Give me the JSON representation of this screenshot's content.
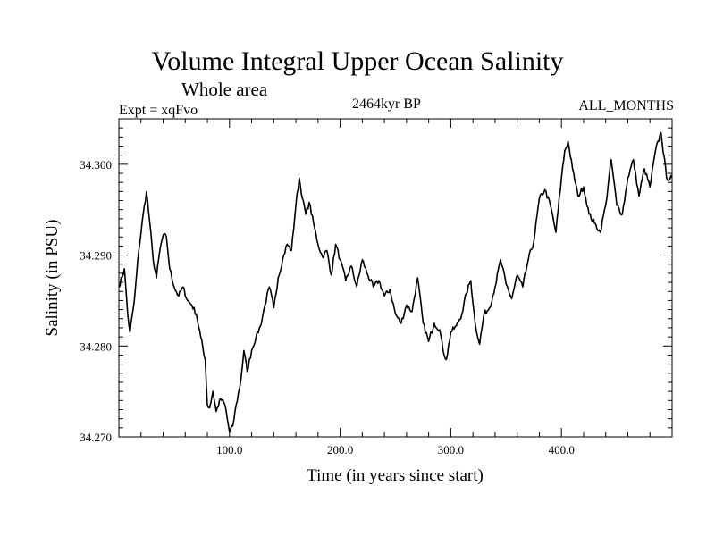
{
  "header": {
    "title": "Volume Integral Upper Ocean Salinity",
    "subtitle": "Whole area",
    "experiment": "Expt = xqFvo",
    "period": "2464kyr BP",
    "months": "ALL_MONTHS"
  },
  "chart_data": {
    "type": "line",
    "title": "Volume Integral Upper Ocean Salinity",
    "xlabel": "Time (in years since start)",
    "ylabel": "Salinity (in PSU)",
    "xlim": [
      0,
      500
    ],
    "ylim": [
      34.27,
      34.305
    ],
    "xticks": [
      100,
      200,
      300,
      400
    ],
    "xtick_labels": [
      "100.0",
      "200.0",
      "300.0",
      "400.0"
    ],
    "yticks": [
      34.27,
      34.28,
      34.29,
      34.3
    ],
    "ytick_labels": [
      "34.270",
      "34.280",
      "34.290",
      "34.300"
    ],
    "grid": false,
    "colors": {
      "line": "#000000",
      "axes": "#000000"
    },
    "series": [
      {
        "name": "Salinity",
        "x": [
          0,
          5,
          8,
          10,
          14,
          18,
          22,
          25,
          28,
          31,
          34,
          37,
          40,
          43,
          46,
          50,
          54,
          58,
          62,
          66,
          70,
          74,
          78,
          80,
          82,
          85,
          88,
          92,
          96,
          100,
          103,
          106,
          110,
          113,
          116,
          120,
          124,
          128,
          132,
          136,
          140,
          144,
          148,
          152,
          156,
          160,
          163,
          166,
          169,
          172,
          176,
          180,
          184,
          188,
          192,
          196,
          200,
          205,
          210,
          215,
          220,
          225,
          230,
          235,
          240,
          245,
          250,
          255,
          260,
          265,
          270,
          275,
          280,
          285,
          290,
          293,
          296,
          300,
          305,
          310,
          314,
          318,
          322,
          326,
          330,
          335,
          340,
          345,
          350,
          355,
          360,
          365,
          370,
          375,
          380,
          385,
          390,
          395,
          400,
          403,
          406,
          410,
          415,
          420,
          425,
          430,
          435,
          440,
          445,
          450,
          455,
          460,
          465,
          470,
          475,
          480,
          485,
          490,
          495,
          500
        ],
        "values": [
          34.2865,
          34.2885,
          34.2835,
          34.2815,
          34.285,
          34.2905,
          34.2945,
          34.297,
          34.2935,
          34.2895,
          34.2875,
          34.2905,
          34.2922,
          34.292,
          34.2885,
          34.2865,
          34.2855,
          34.2865,
          34.285,
          34.2845,
          34.2835,
          34.281,
          34.2785,
          34.2735,
          34.2732,
          34.275,
          34.2728,
          34.2742,
          34.2735,
          34.2705,
          34.2712,
          34.2735,
          34.276,
          34.2795,
          34.2772,
          34.2795,
          34.281,
          34.2822,
          34.2845,
          34.2865,
          34.2842,
          34.2875,
          34.2895,
          34.2912,
          34.2905,
          34.2955,
          34.2985,
          34.2962,
          34.2945,
          34.2958,
          34.2935,
          34.2912,
          34.2898,
          34.2905,
          34.2878,
          34.2912,
          34.2895,
          34.2872,
          34.2888,
          34.2865,
          34.2895,
          34.2878,
          34.2865,
          34.2872,
          34.2855,
          34.2862,
          34.2835,
          34.2825,
          34.2845,
          34.2838,
          34.2875,
          34.2825,
          34.2805,
          34.2825,
          34.2818,
          34.2795,
          34.2785,
          34.2815,
          34.2822,
          34.2835,
          34.2858,
          34.2872,
          34.2825,
          34.2802,
          34.2835,
          34.2842,
          34.2865,
          34.2895,
          34.2868,
          34.2852,
          34.2878,
          34.2865,
          34.2895,
          34.2915,
          34.2962,
          34.2972,
          34.2955,
          34.2925,
          34.2985,
          34.3015,
          34.3025,
          34.2995,
          34.2965,
          34.2975,
          34.2945,
          34.2935,
          34.2925,
          34.2955,
          34.3005,
          34.2955,
          34.2945,
          34.2985,
          34.3005,
          34.2965,
          34.2995,
          34.2975,
          34.3015,
          34.3035,
          34.2985,
          34.2985
        ]
      }
    ]
  }
}
